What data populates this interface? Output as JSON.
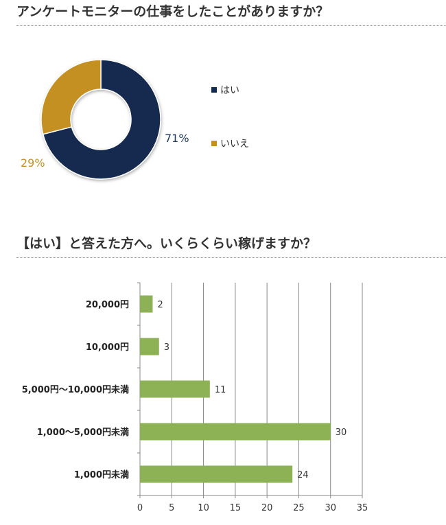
{
  "sections": [
    {
      "title": "アンケートモニターの仕事をしたことがありますか？"
    },
    {
      "title": "【はい】と答えた方へ。いくらくらい稼げますか？"
    }
  ],
  "chart_data": [
    {
      "type": "pie",
      "variant": "donut",
      "title": "アンケートモニターの仕事をしたことがありますか？",
      "slices": [
        {
          "label": "はい",
          "value": 71,
          "display": "71%",
          "color": "#142c4f"
        },
        {
          "label": "いいえ",
          "value": 29,
          "display": "29%",
          "color": "#c49024"
        }
      ],
      "legend": {
        "position": "right",
        "entries": [
          "はい",
          "いいえ"
        ]
      }
    },
    {
      "type": "bar",
      "orientation": "horizontal",
      "title": "【はい】と答えた方へ。いくらくらい稼げますか？",
      "categories": [
        "20,000円",
        "10,000円",
        "5,000円〜10,000円未満",
        "1,000〜5,000円未満",
        "1,000円未満"
      ],
      "values": [
        2,
        3,
        11,
        30,
        24
      ],
      "color": "#8db255",
      "xlim": [
        0,
        35
      ],
      "xticks": [
        0,
        5,
        10,
        15,
        20,
        25,
        30,
        35
      ],
      "grid": true
    }
  ]
}
